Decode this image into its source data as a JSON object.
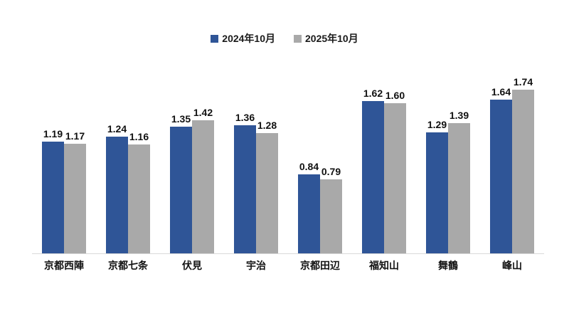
{
  "chart_data": {
    "type": "bar",
    "title": "",
    "xlabel": "",
    "ylabel": "",
    "categories": [
      "京都西陣",
      "京都七条",
      "伏見",
      "宇治",
      "京都田辺",
      "福知山",
      "舞鶴",
      "峰山"
    ],
    "series": [
      {
        "name": "2024年10月",
        "color": "#2F5597",
        "values": [
          1.19,
          1.24,
          1.35,
          1.36,
          0.84,
          1.62,
          1.29,
          1.64
        ]
      },
      {
        "name": "2025年10月",
        "color": "#A9A9A9",
        "values": [
          1.17,
          1.16,
          1.42,
          1.28,
          0.79,
          1.6,
          1.39,
          1.74
        ]
      }
    ],
    "ylim": [
      0,
      2.0
    ],
    "grid": false,
    "y_axis_visible": false,
    "data_labels": true,
    "legend_position": "top-center",
    "axis_line_color": "#D9D9D9",
    "label_color": "#111111",
    "background_color": "#FFFFFF"
  }
}
